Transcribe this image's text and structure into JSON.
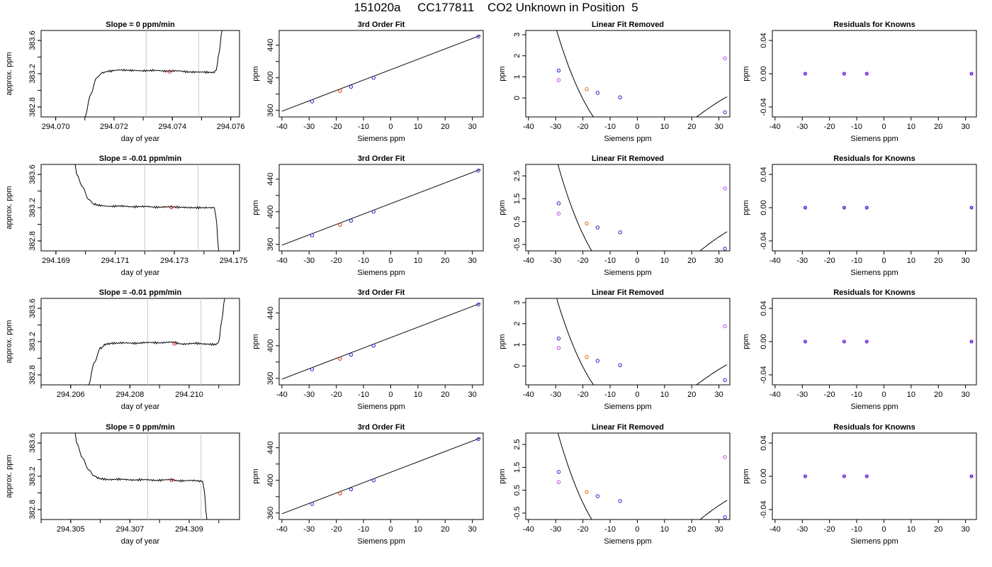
{
  "figure": {
    "title": "151020a     CC177811    CO2 Unknown in Position  5"
  },
  "chart_data": [
    {
      "type": "line",
      "panel": "trace",
      "row": 1,
      "title": "Slope =  0  ppm/min",
      "xlabel": "day of year",
      "ylabel": "approx. ppm",
      "xlim": [
        294.0695,
        294.0763
      ],
      "ylim": [
        382.68,
        383.72
      ],
      "xticks": [
        "294.070",
        "294.072",
        "294.074",
        "294.076"
      ],
      "yticks": [
        "382.8",
        "383.2",
        "383.6"
      ],
      "vlines": [
        294.0731,
        294.0749
      ],
      "marker": {
        "x": 294.0739,
        "y": 383.225,
        "color": "#dd2222"
      },
      "series": [
        {
          "x": [
            294.071,
            294.0712,
            294.0714,
            294.0716,
            294.0718,
            294.0722,
            294.0726,
            294.073,
            294.0734,
            294.0738,
            294.0742,
            294.0746,
            294.075,
            294.0754,
            294.0755,
            294.0756,
            294.0757
          ],
          "y": [
            382.68,
            382.95,
            383.15,
            383.21,
            383.23,
            383.245,
            383.24,
            383.235,
            383.24,
            383.23,
            383.235,
            383.22,
            383.22,
            383.215,
            383.24,
            383.45,
            383.72
          ]
        }
      ]
    },
    {
      "type": "line",
      "panel": "fit",
      "row": 1,
      "title": "3rd Order Fit",
      "xlabel": "Siemens ppm",
      "ylabel": "ppm",
      "xlim": [
        -41,
        34
      ],
      "ylim": [
        352,
        458
      ],
      "xticks": [
        "-40",
        "-30",
        "-20",
        "-10",
        "0",
        "10",
        "20",
        "30"
      ],
      "yticks": [
        "360",
        "400",
        "440"
      ],
      "curve": {
        "x": [
          -40,
          33
        ],
        "y": [
          359,
          452
        ]
      },
      "points": [
        {
          "x": -28.9,
          "y": 371,
          "color": "#2222cc"
        },
        {
          "x": -18.6,
          "y": 384,
          "color": "#dd3300"
        },
        {
          "x": -14.6,
          "y": 389,
          "color": "#2222cc"
        },
        {
          "x": -6.3,
          "y": 400,
          "color": "#2222cc"
        },
        {
          "x": 32.2,
          "y": 450.5,
          "color": "#2222cc"
        }
      ]
    },
    {
      "type": "line",
      "panel": "linear",
      "row": 1,
      "title": "Linear Fit Removed",
      "xlabel": "Siemens ppm",
      "ylabel": "ppm",
      "xlim": [
        -41,
        34
      ],
      "ylim": [
        -0.9,
        3.2
      ],
      "xticks": [
        "-40",
        "-30",
        "-20",
        "-10",
        "0",
        "10",
        "20",
        "30"
      ],
      "yticks": [
        "0",
        "1",
        "2",
        "3"
      ],
      "curve_params": {
        "r": 32.2,
        "b": 0.071,
        "c": -0.00213,
        "d": -6.651e-05
      },
      "points": [
        {
          "x": -28.9,
          "y": 1.3,
          "color": "#2222cc"
        },
        {
          "x": -18.6,
          "y": 0.42,
          "color": "#dd6600"
        },
        {
          "x": -14.6,
          "y": 0.24,
          "color": "#2222cc"
        },
        {
          "x": -6.3,
          "y": 0.03,
          "color": "#2222cc"
        },
        {
          "x": 32.2,
          "y": -0.68,
          "color": "#2222cc"
        }
      ],
      "reference_points": [
        {
          "x": -28.9,
          "y": 0.85,
          "color": "#bb44ee"
        },
        {
          "x": 32.2,
          "y": 1.88,
          "color": "#bb44ee"
        }
      ]
    },
    {
      "type": "scatter",
      "panel": "residuals",
      "row": 1,
      "title": "Residuals for Knowns",
      "xlabel": "Siemens ppm",
      "ylabel": "ppm",
      "xlim": [
        -41,
        34
      ],
      "ylim": [
        -0.052,
        0.052
      ],
      "xticks": [
        "-40",
        "-30",
        "-20",
        "-10",
        "0",
        "10",
        "20",
        "30"
      ],
      "yticks": [
        "-0.04",
        "0.00",
        "0.04"
      ],
      "points": [
        {
          "x": -28.9,
          "y": 0.0
        },
        {
          "x": -14.6,
          "y": 0.0
        },
        {
          "x": -6.3,
          "y": 0.0
        },
        {
          "x": 32.2,
          "y": 0.0
        }
      ]
    },
    {
      "type": "line",
      "panel": "trace",
      "row": 2,
      "title": "Slope =  -0.01  ppm/min",
      "xlabel": "day of year",
      "ylabel": "approx. ppm",
      "xlim": [
        294.1685,
        294.1752
      ],
      "ylim": [
        382.68,
        383.72
      ],
      "xticks": [
        "294.169",
        "294.171",
        "294.173",
        "294.175"
      ],
      "yticks": [
        "382.8",
        "383.2",
        "383.6"
      ],
      "vlines": [
        294.172,
        294.1738
      ],
      "marker": {
        "x": 294.1729,
        "y": 383.205,
        "color": "#dd2222"
      },
      "series": [
        {
          "x": [
            294.16965,
            294.1697,
            294.1699,
            294.1701,
            294.1703,
            294.1705,
            294.1708,
            294.1712,
            294.1716,
            294.172,
            294.1724,
            294.1728,
            294.1732,
            294.1736,
            294.174,
            294.17435,
            294.1744,
            294.1745
          ],
          "y": [
            383.72,
            383.6,
            383.45,
            383.3,
            383.24,
            383.225,
            383.215,
            383.22,
            383.21,
            383.215,
            383.205,
            383.21,
            383.205,
            383.2,
            383.2,
            383.2,
            383.1,
            382.68
          ]
        }
      ]
    },
    {
      "type": "line",
      "panel": "fit",
      "row": 2,
      "title": "3rd Order Fit",
      "xlabel": "Siemens ppm",
      "ylabel": "ppm",
      "xlim": [
        -41,
        34
      ],
      "ylim": [
        352,
        458
      ],
      "xticks": [
        "-40",
        "-30",
        "-20",
        "-10",
        "0",
        "10",
        "20",
        "30"
      ],
      "yticks": [
        "360",
        "400",
        "440"
      ],
      "curve": {
        "x": [
          -40,
          33
        ],
        "y": [
          359,
          452
        ]
      },
      "points": [
        {
          "x": -28.9,
          "y": 371,
          "color": "#2222cc"
        },
        {
          "x": -18.6,
          "y": 384,
          "color": "#dd3300"
        },
        {
          "x": -14.6,
          "y": 389,
          "color": "#2222cc"
        },
        {
          "x": -6.3,
          "y": 400,
          "color": "#2222cc"
        },
        {
          "x": 32.2,
          "y": 450.5,
          "color": "#2222cc"
        }
      ]
    },
    {
      "type": "line",
      "panel": "linear",
      "row": 2,
      "title": "Linear Fit Removed",
      "xlabel": "Siemens ppm",
      "ylabel": "ppm",
      "xlim": [
        -41,
        34
      ],
      "ylim": [
        -0.78,
        3.0
      ],
      "xticks": [
        "-40",
        "-30",
        "-20",
        "-10",
        "0",
        "10",
        "20",
        "30"
      ],
      "yticks": [
        "-0.5",
        "0.5",
        "1.5",
        "2.5"
      ],
      "curve_params": {
        "r": 32.2,
        "b": 0.071,
        "c": -0.00213,
        "d": -6.651e-05
      },
      "points": [
        {
          "x": -28.9,
          "y": 1.3,
          "color": "#2222cc"
        },
        {
          "x": -18.6,
          "y": 0.42,
          "color": "#dd6600"
        },
        {
          "x": -14.6,
          "y": 0.24,
          "color": "#2222cc"
        },
        {
          "x": -6.3,
          "y": 0.03,
          "color": "#2222cc"
        },
        {
          "x": 32.2,
          "y": -0.68,
          "color": "#2222cc"
        }
      ],
      "reference_points": [
        {
          "x": -28.9,
          "y": 0.85,
          "color": "#bb44ee"
        },
        {
          "x": 32.2,
          "y": 1.95,
          "color": "#bb44ee"
        }
      ]
    },
    {
      "type": "scatter",
      "panel": "residuals",
      "row": 2,
      "title": "Residuals for Knowns",
      "xlabel": "Siemens ppm",
      "ylabel": "ppm",
      "xlim": [
        -41,
        34
      ],
      "ylim": [
        -0.052,
        0.052
      ],
      "xticks": [
        "-40",
        "-30",
        "-20",
        "-10",
        "0",
        "10",
        "20",
        "30"
      ],
      "yticks": [
        "-0.04",
        "0.00",
        "0.04"
      ],
      "points": [
        {
          "x": -28.9,
          "y": 0.0
        },
        {
          "x": -14.6,
          "y": 0.0
        },
        {
          "x": -6.3,
          "y": 0.0
        },
        {
          "x": 32.2,
          "y": 0.0
        }
      ]
    },
    {
      "type": "line",
      "panel": "trace",
      "row": 3,
      "title": "Slope =  -0.01  ppm/min",
      "xlabel": "day of year",
      "ylabel": "approx. ppm",
      "xlim": [
        294.205,
        294.2117
      ],
      "ylim": [
        382.68,
        383.72
      ],
      "xticks": [
        "294.206",
        "294.208",
        "294.210"
      ],
      "yticks": [
        "382.8",
        "383.2",
        "383.6"
      ],
      "vlines": [
        294.2086,
        294.2104
      ],
      "marker": {
        "x": 294.2095,
        "y": 383.175,
        "color": "#dd2222"
      },
      "series": [
        {
          "x": [
            294.2066,
            294.2068,
            294.207,
            294.2072,
            294.2074,
            294.2078,
            294.2082,
            294.2086,
            294.209,
            294.2094,
            294.2098,
            294.2102,
            294.2106,
            294.2109,
            294.211,
            294.2111,
            294.2112
          ],
          "y": [
            382.68,
            382.95,
            383.12,
            383.17,
            383.18,
            383.185,
            383.18,
            383.19,
            383.185,
            383.195,
            383.17,
            383.18,
            383.17,
            383.165,
            383.2,
            383.45,
            383.72
          ]
        }
      ]
    },
    {
      "type": "line",
      "panel": "fit",
      "row": 3,
      "title": "3rd Order Fit",
      "xlabel": "Siemens ppm",
      "ylabel": "ppm",
      "xlim": [
        -41,
        34
      ],
      "ylim": [
        352,
        458
      ],
      "xticks": [
        "-40",
        "-30",
        "-20",
        "-10",
        "0",
        "10",
        "20",
        "30"
      ],
      "yticks": [
        "360",
        "400",
        "440"
      ],
      "curve": {
        "x": [
          -40,
          33
        ],
        "y": [
          359,
          452
        ]
      },
      "points": [
        {
          "x": -28.9,
          "y": 371,
          "color": "#2222cc"
        },
        {
          "x": -18.6,
          "y": 384,
          "color": "#dd3300"
        },
        {
          "x": -14.6,
          "y": 389,
          "color": "#2222cc"
        },
        {
          "x": -6.3,
          "y": 400,
          "color": "#2222cc"
        },
        {
          "x": 32.2,
          "y": 450.5,
          "color": "#2222cc"
        }
      ]
    },
    {
      "type": "line",
      "panel": "linear",
      "row": 3,
      "title": "Linear Fit Removed",
      "xlabel": "Siemens ppm",
      "ylabel": "ppm",
      "xlim": [
        -41,
        34
      ],
      "ylim": [
        -0.9,
        3.2
      ],
      "xticks": [
        "-40",
        "-30",
        "-20",
        "-10",
        "0",
        "10",
        "20",
        "30"
      ],
      "yticks": [
        "0",
        "1",
        "2",
        "3"
      ],
      "curve_params": {
        "r": 32.2,
        "b": 0.071,
        "c": -0.00213,
        "d": -6.651e-05
      },
      "points": [
        {
          "x": -28.9,
          "y": 1.3,
          "color": "#2222cc"
        },
        {
          "x": -18.6,
          "y": 0.42,
          "color": "#dd6600"
        },
        {
          "x": -14.6,
          "y": 0.24,
          "color": "#2222cc"
        },
        {
          "x": -6.3,
          "y": 0.03,
          "color": "#2222cc"
        },
        {
          "x": 32.2,
          "y": -0.68,
          "color": "#2222cc"
        }
      ],
      "reference_points": [
        {
          "x": -28.9,
          "y": 0.85,
          "color": "#bb44ee"
        },
        {
          "x": 32.2,
          "y": 1.88,
          "color": "#bb44ee"
        }
      ]
    },
    {
      "type": "scatter",
      "panel": "residuals",
      "row": 3,
      "title": "Residuals for Knowns",
      "xlabel": "Siemens ppm",
      "ylabel": "ppm",
      "xlim": [
        -41,
        34
      ],
      "ylim": [
        -0.052,
        0.052
      ],
      "xticks": [
        "-40",
        "-30",
        "-20",
        "-10",
        "0",
        "10",
        "20",
        "30"
      ],
      "yticks": [
        "-0.04",
        "0.00",
        "0.04"
      ],
      "points": [
        {
          "x": -28.9,
          "y": 0.0
        },
        {
          "x": -14.6,
          "y": 0.0
        },
        {
          "x": -6.3,
          "y": 0.0
        },
        {
          "x": 32.2,
          "y": 0.0
        }
      ]
    },
    {
      "type": "line",
      "panel": "trace",
      "row": 4,
      "title": "Slope =  0  ppm/min",
      "xlabel": "day of year",
      "ylabel": "approx. ppm",
      "xlim": [
        294.304,
        294.3107
      ],
      "ylim": [
        382.68,
        383.72
      ],
      "xticks": [
        "294.305",
        "294.307",
        "294.309"
      ],
      "yticks": [
        "382.8",
        "383.2",
        "383.6"
      ],
      "vlines": [
        294.3076,
        294.3094
      ],
      "marker": {
        "x": 294.3084,
        "y": 383.155,
        "color": "#dd2222"
      },
      "series": [
        {
          "x": [
            294.30515,
            294.3052,
            294.3054,
            294.3056,
            294.3058,
            294.306,
            294.3063,
            294.3067,
            294.3071,
            294.3075,
            294.3079,
            294.3083,
            294.3087,
            294.3091,
            294.30945,
            294.3095,
            294.3096
          ],
          "y": [
            383.72,
            383.6,
            383.42,
            383.28,
            383.2,
            383.17,
            383.16,
            383.165,
            383.155,
            383.16,
            383.15,
            383.16,
            383.145,
            383.15,
            383.14,
            383.05,
            382.68
          ]
        }
      ]
    },
    {
      "type": "line",
      "panel": "fit",
      "row": 4,
      "title": "3rd Order Fit",
      "xlabel": "Siemens ppm",
      "ylabel": "ppm",
      "xlim": [
        -41,
        34
      ],
      "ylim": [
        352,
        458
      ],
      "xticks": [
        "-40",
        "-30",
        "-20",
        "-10",
        "0",
        "10",
        "20",
        "30"
      ],
      "yticks": [
        "360",
        "400",
        "440"
      ],
      "curve": {
        "x": [
          -40,
          33
        ],
        "y": [
          359,
          452
        ]
      },
      "points": [
        {
          "x": -28.9,
          "y": 371,
          "color": "#2222cc"
        },
        {
          "x": -18.6,
          "y": 384,
          "color": "#dd3300"
        },
        {
          "x": -14.6,
          "y": 389,
          "color": "#2222cc"
        },
        {
          "x": -6.3,
          "y": 400,
          "color": "#2222cc"
        },
        {
          "x": 32.2,
          "y": 450.5,
          "color": "#2222cc"
        }
      ]
    },
    {
      "type": "line",
      "panel": "linear",
      "row": 4,
      "title": "Linear Fit Removed",
      "xlabel": "Siemens ppm",
      "ylabel": "ppm",
      "xlim": [
        -41,
        34
      ],
      "ylim": [
        -0.78,
        3.0
      ],
      "xticks": [
        "-40",
        "-30",
        "-20",
        "-10",
        "0",
        "10",
        "20",
        "30"
      ],
      "yticks": [
        "-0.5",
        "0.5",
        "1.5",
        "2.5"
      ],
      "curve_params": {
        "r": 32.2,
        "b": 0.071,
        "c": -0.00213,
        "d": -6.651e-05
      },
      "points": [
        {
          "x": -28.9,
          "y": 1.3,
          "color": "#2222cc"
        },
        {
          "x": -18.6,
          "y": 0.42,
          "color": "#dd6600"
        },
        {
          "x": -14.6,
          "y": 0.24,
          "color": "#2222cc"
        },
        {
          "x": -6.3,
          "y": 0.03,
          "color": "#2222cc"
        },
        {
          "x": 32.2,
          "y": -0.68,
          "color": "#2222cc"
        }
      ],
      "reference_points": [
        {
          "x": -28.9,
          "y": 0.85,
          "color": "#bb44ee"
        },
        {
          "x": 32.2,
          "y": 1.95,
          "color": "#bb44ee"
        }
      ]
    },
    {
      "type": "scatter",
      "panel": "residuals",
      "row": 4,
      "title": "Residuals for Knowns",
      "xlabel": "Siemens ppm",
      "ylabel": "ppm",
      "xlim": [
        -41,
        34
      ],
      "ylim": [
        -0.052,
        0.052
      ],
      "xticks": [
        "-40",
        "-30",
        "-20",
        "-10",
        "0",
        "10",
        "20",
        "30"
      ],
      "yticks": [
        "-0.04",
        "0.00",
        "0.04"
      ],
      "points": [
        {
          "x": -28.9,
          "y": 0.0
        },
        {
          "x": -14.6,
          "y": 0.0
        },
        {
          "x": -6.3,
          "y": 0.0
        },
        {
          "x": 32.2,
          "y": 0.0
        }
      ]
    }
  ]
}
